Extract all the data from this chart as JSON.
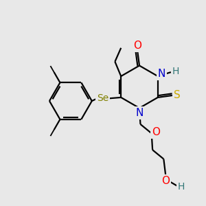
{
  "bg_color": "#e8e8e8",
  "atom_colors": {
    "C": "#000000",
    "N": "#0000cc",
    "O": "#ff0000",
    "S": "#ccaa00",
    "Se": "#808000",
    "H": "#337777"
  },
  "bond_color": "#000000",
  "lw": 1.6
}
